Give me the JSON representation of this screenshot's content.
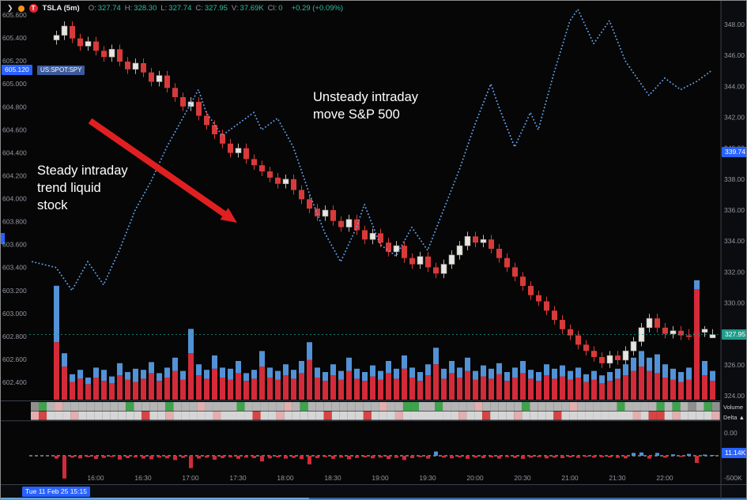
{
  "toolbar": {
    "symbol": "TSLA (5m)",
    "logo_letter": "T",
    "fields": [
      {
        "label": "O:",
        "value": "327.74"
      },
      {
        "label": "H:",
        "value": "328.30"
      },
      {
        "label": "L:",
        "value": "327.74"
      },
      {
        "label": "C:",
        "value": "327.95"
      },
      {
        "label": "V:",
        "value": "37.69K"
      },
      {
        "label": "Cl:",
        "value": "0"
      }
    ],
    "change": "+0.29 (+0.09%)"
  },
  "annotations": {
    "unsteady1": "Unsteady intraday",
    "unsteady2": "move S&P 500",
    "steady1": "Steady intraday",
    "steady2": "trend liquid",
    "steady3": "stock"
  },
  "badges": {
    "spy_left": "605.120",
    "spy_instrument": "US:SPOT:SPY",
    "right_blue": "339.74",
    "right_last": "327.95",
    "delta_value": "11.14K",
    "datetime": "Tue 11 Feb 25 15:15"
  },
  "pane_labels": {
    "volume": "Volume",
    "delta": "Delta ▲"
  },
  "colors": {
    "up": "#e8e6e3",
    "up_wick": "#b9b6b0",
    "down": "#d83a3a",
    "vol_sell": "#d32b39",
    "vol_buy": "#5292d6",
    "spy_line": "#5f9ee8",
    "accent_blue": "#2962ff",
    "accent_teal": "#1f9c8c",
    "arrow": "#e02020"
  },
  "chart_data": {
    "type": "candlestick",
    "symbol": "TSLA",
    "interval": "5m",
    "bar_minutes": 5,
    "legend_note": "white/red candles = TSLA (right axis); blue dotted line = US:SPOT:SPY (left axis); stacked red/blue = sell/buy volume; lower pane = Delta",
    "right_axis": {
      "range": [
        324,
        348
      ],
      "ticks": [
        "348.00",
        "346.00",
        "344.00",
        "342.00",
        "340.00",
        "338.00",
        "336.00",
        "334.00",
        "332.00",
        "330.00",
        "328.00",
        "326.00",
        "324.00"
      ]
    },
    "left_axis": {
      "range": [
        602.4,
        605.6
      ],
      "ticks": [
        "605.600",
        "605.400",
        "605.200",
        "605.000",
        "604.800",
        "604.600",
        "604.400",
        "604.200",
        "604.000",
        "603.800",
        "603.600",
        "603.400",
        "603.200",
        "603.000",
        "602.800",
        "602.600",
        "602.400"
      ]
    },
    "delta_axis": {
      "ticks": [
        "0.00",
        "-500K"
      ]
    },
    "time_ticks": [
      [
        5,
        "16:00"
      ],
      [
        11,
        "16:30"
      ],
      [
        17,
        "17:00"
      ],
      [
        23,
        "17:30"
      ],
      [
        29,
        "18:00"
      ],
      [
        35,
        "18:30"
      ],
      [
        41,
        "19:00"
      ],
      [
        47,
        "19:30"
      ],
      [
        53,
        "20:00"
      ],
      [
        59,
        "20:30"
      ],
      [
        65,
        "21:00"
      ],
      [
        71,
        "21:30"
      ],
      [
        77,
        "22:00"
      ]
    ],
    "candles": [
      [
        347.0,
        347.6,
        346.7,
        347.3
      ],
      [
        347.3,
        348.2,
        347.0,
        347.9
      ],
      [
        347.9,
        348.2,
        346.8,
        347.1
      ],
      [
        347.1,
        347.4,
        346.3,
        346.6
      ],
      [
        346.6,
        347.2,
        346.3,
        346.9
      ],
      [
        346.9,
        347.2,
        346.0,
        346.3
      ],
      [
        346.3,
        346.6,
        345.6,
        345.9
      ],
      [
        345.9,
        346.7,
        345.6,
        346.4
      ],
      [
        346.4,
        346.7,
        345.3,
        345.6
      ],
      [
        345.6,
        345.9,
        344.8,
        345.1
      ],
      [
        345.1,
        345.8,
        344.8,
        345.5
      ],
      [
        345.5,
        345.8,
        344.6,
        344.9
      ],
      [
        344.9,
        345.2,
        344.0,
        344.3
      ],
      [
        344.3,
        345.0,
        344.0,
        344.7
      ],
      [
        344.7,
        345.0,
        343.6,
        343.9
      ],
      [
        343.9,
        344.2,
        343.0,
        343.3
      ],
      [
        343.3,
        343.6,
        342.4,
        342.7
      ],
      [
        342.7,
        343.3,
        342.4,
        343.0
      ],
      [
        343.0,
        343.3,
        341.8,
        342.1
      ],
      [
        342.1,
        342.4,
        341.2,
        341.5
      ],
      [
        341.5,
        341.8,
        340.6,
        340.9
      ],
      [
        340.9,
        341.2,
        340.0,
        340.3
      ],
      [
        340.3,
        340.6,
        339.4,
        339.7
      ],
      [
        339.7,
        340.3,
        339.4,
        340.0
      ],
      [
        340.0,
        340.3,
        339.0,
        339.3
      ],
      [
        339.3,
        339.6,
        338.6,
        338.9
      ],
      [
        338.9,
        339.2,
        338.2,
        338.5
      ],
      [
        338.5,
        338.8,
        337.8,
        338.1
      ],
      [
        338.1,
        338.4,
        337.4,
        337.7
      ],
      [
        337.7,
        338.3,
        337.4,
        338.0
      ],
      [
        338.0,
        338.3,
        337.0,
        337.3
      ],
      [
        337.3,
        337.6,
        336.4,
        336.7
      ],
      [
        336.7,
        337.0,
        335.8,
        336.1
      ],
      [
        336.1,
        336.4,
        335.3,
        335.6
      ],
      [
        335.6,
        336.3,
        335.3,
        336.0
      ],
      [
        336.0,
        336.3,
        335.0,
        335.3
      ],
      [
        335.3,
        335.6,
        334.6,
        334.9
      ],
      [
        334.9,
        335.7,
        334.6,
        335.4
      ],
      [
        335.4,
        335.7,
        334.4,
        334.7
      ],
      [
        334.7,
        335.0,
        333.8,
        334.1
      ],
      [
        334.1,
        334.8,
        333.8,
        334.5
      ],
      [
        334.5,
        334.8,
        333.6,
        333.9
      ],
      [
        333.9,
        334.2,
        333.0,
        333.3
      ],
      [
        333.3,
        334.0,
        333.0,
        333.7
      ],
      [
        333.7,
        334.0,
        332.6,
        332.9
      ],
      [
        332.9,
        333.2,
        332.2,
        332.5
      ],
      [
        332.5,
        333.3,
        332.2,
        333.0
      ],
      [
        333.0,
        333.3,
        332.0,
        332.3
      ],
      [
        332.3,
        332.6,
        331.6,
        331.9
      ],
      [
        331.9,
        332.8,
        331.6,
        332.5
      ],
      [
        332.5,
        333.4,
        332.2,
        333.1
      ],
      [
        333.1,
        334.0,
        332.8,
        333.7
      ],
      [
        333.7,
        334.6,
        333.4,
        334.3
      ],
      [
        334.3,
        334.6,
        333.6,
        333.9
      ],
      [
        333.9,
        334.4,
        333.6,
        334.1
      ],
      [
        334.1,
        334.4,
        333.2,
        333.5
      ],
      [
        333.5,
        333.8,
        332.6,
        332.9
      ],
      [
        332.9,
        333.2,
        332.0,
        332.3
      ],
      [
        332.3,
        332.6,
        331.4,
        331.7
      ],
      [
        331.7,
        332.0,
        330.8,
        331.1
      ],
      [
        331.1,
        331.4,
        330.2,
        330.5
      ],
      [
        330.5,
        330.8,
        329.8,
        330.1
      ],
      [
        330.1,
        330.4,
        329.2,
        329.5
      ],
      [
        329.5,
        329.8,
        328.6,
        328.9
      ],
      [
        328.9,
        329.2,
        328.0,
        328.3
      ],
      [
        328.3,
        328.6,
        327.6,
        327.9
      ],
      [
        327.9,
        328.2,
        327.0,
        327.3
      ],
      [
        327.3,
        327.6,
        326.6,
        326.9
      ],
      [
        326.9,
        327.2,
        326.2,
        326.5
      ],
      [
        326.5,
        326.8,
        325.8,
        326.1
      ],
      [
        326.1,
        326.9,
        325.8,
        326.6
      ],
      [
        326.6,
        326.9,
        326.0,
        326.3
      ],
      [
        326.3,
        327.2,
        326.0,
        326.9
      ],
      [
        326.9,
        327.8,
        326.6,
        327.5
      ],
      [
        327.5,
        328.7,
        327.2,
        328.4
      ],
      [
        328.4,
        329.3,
        328.1,
        329.0
      ],
      [
        329.0,
        329.3,
        328.1,
        328.4
      ],
      [
        328.4,
        328.7,
        327.7,
        328.0
      ],
      [
        328.0,
        328.5,
        327.7,
        328.2
      ],
      [
        328.2,
        328.5,
        327.6,
        327.9
      ],
      [
        327.9,
        328.3,
        327.6,
        327.8
      ],
      [
        327.8,
        328.4,
        327.5,
        328.1
      ],
      [
        328.1,
        328.5,
        327.8,
        328.3
      ],
      [
        327.74,
        328.3,
        327.74,
        327.95
      ]
    ],
    "overlay_line": {
      "name": "US:SPOT:SPY",
      "axis": "left",
      "style": "dotted",
      "last_value": 605.12,
      "points": [
        [
          -3,
          603.45
        ],
        [
          0,
          603.4
        ],
        [
          2,
          603.2
        ],
        [
          4,
          603.45
        ],
        [
          6,
          603.25
        ],
        [
          8,
          603.55
        ],
        [
          10,
          603.9
        ],
        [
          12,
          604.15
        ],
        [
          14,
          604.45
        ],
        [
          16,
          604.7
        ],
        [
          18,
          604.95
        ],
        [
          19,
          604.75
        ],
        [
          21,
          604.55
        ],
        [
          23,
          604.65
        ],
        [
          25,
          604.75
        ],
        [
          26,
          604.6
        ],
        [
          28,
          604.7
        ],
        [
          30,
          604.45
        ],
        [
          32,
          604.05
        ],
        [
          34,
          603.7
        ],
        [
          36,
          603.45
        ],
        [
          38,
          603.75
        ],
        [
          39,
          603.95
        ],
        [
          41,
          603.6
        ],
        [
          43,
          603.5
        ],
        [
          45,
          603.75
        ],
        [
          47,
          603.55
        ],
        [
          49,
          603.9
        ],
        [
          51,
          604.25
        ],
        [
          53,
          604.65
        ],
        [
          55,
          605.0
        ],
        [
          56,
          604.8
        ],
        [
          58,
          604.45
        ],
        [
          60,
          604.75
        ],
        [
          61,
          604.6
        ],
        [
          63,
          605.1
        ],
        [
          65,
          605.55
        ],
        [
          66,
          605.65
        ],
        [
          68,
          605.35
        ],
        [
          70,
          605.55
        ],
        [
          72,
          605.2
        ],
        [
          74,
          605.0
        ],
        [
          75,
          604.9
        ],
        [
          77,
          605.05
        ],
        [
          79,
          604.95
        ],
        [
          81,
          605.02
        ],
        [
          83,
          605.12
        ]
      ]
    },
    "volume_stacked": {
      "series": [
        "sell",
        "buy"
      ],
      "units": "K",
      "values": [
        [
          260,
          255
        ],
        [
          150,
          60
        ],
        [
          80,
          35
        ],
        [
          95,
          40
        ],
        [
          70,
          30
        ],
        [
          100,
          45
        ],
        [
          85,
          50
        ],
        [
          75,
          30
        ],
        [
          110,
          55
        ],
        [
          90,
          35
        ],
        [
          80,
          60
        ],
        [
          95,
          40
        ],
        [
          120,
          50
        ],
        [
          85,
          35
        ],
        [
          100,
          45
        ],
        [
          130,
          60
        ],
        [
          90,
          40
        ],
        [
          210,
          110
        ],
        [
          110,
          50
        ],
        [
          95,
          40
        ],
        [
          140,
          60
        ],
        [
          100,
          45
        ],
        [
          90,
          50
        ],
        [
          120,
          55
        ],
        [
          85,
          35
        ],
        [
          95,
          40
        ],
        [
          150,
          70
        ],
        [
          100,
          45
        ],
        [
          90,
          40
        ],
        [
          110,
          50
        ],
        [
          95,
          40
        ],
        [
          120,
          55
        ],
        [
          180,
          80
        ],
        [
          100,
          45
        ],
        [
          85,
          40
        ],
        [
          110,
          50
        ],
        [
          90,
          40
        ],
        [
          130,
          60
        ],
        [
          95,
          45
        ],
        [
          85,
          40
        ],
        [
          105,
          50
        ],
        [
          90,
          40
        ],
        [
          120,
          55
        ],
        [
          95,
          45
        ],
        [
          140,
          60
        ],
        [
          100,
          45
        ],
        [
          85,
          40
        ],
        [
          110,
          50
        ],
        [
          160,
          75
        ],
        [
          95,
          45
        ],
        [
          120,
          55
        ],
        [
          100,
          45
        ],
        [
          130,
          60
        ],
        [
          90,
          40
        ],
        [
          105,
          50
        ],
        [
          95,
          45
        ],
        [
          115,
          50
        ],
        [
          85,
          40
        ],
        [
          100,
          45
        ],
        [
          120,
          55
        ],
        [
          95,
          40
        ],
        [
          85,
          40
        ],
        [
          110,
          50
        ],
        [
          95,
          45
        ],
        [
          105,
          50
        ],
        [
          90,
          40
        ],
        [
          100,
          45
        ],
        [
          80,
          35
        ],
        [
          90,
          40
        ],
        [
          75,
          35
        ],
        [
          85,
          40
        ],
        [
          95,
          45
        ],
        [
          110,
          50
        ],
        [
          130,
          60
        ],
        [
          150,
          70
        ],
        [
          130,
          60
        ],
        [
          120,
          85
        ],
        [
          100,
          60
        ],
        [
          90,
          50
        ],
        [
          80,
          45
        ],
        [
          90,
          55
        ],
        [
          500,
          40
        ],
        [
          110,
          65
        ],
        [
          85,
          45
        ]
      ]
    },
    "delta": {
      "units": "K",
      "last_label": "11.14K",
      "values": [
        -60,
        -480,
        -40,
        -55,
        -30,
        -70,
        -45,
        -25,
        -80,
        -50,
        -35,
        -60,
        -75,
        -40,
        -55,
        -90,
        -45,
        -260,
        -60,
        -40,
        -85,
        -50,
        -35,
        -65,
        -40,
        -50,
        -120,
        -55,
        -35,
        -60,
        -45,
        -70,
        -180,
        -50,
        -30,
        -65,
        -40,
        -75,
        -45,
        -35,
        -55,
        -40,
        -70,
        -45,
        -90,
        -50,
        -30,
        -60,
        90,
        -40,
        -55,
        -35,
        -65,
        -40,
        -50,
        -35,
        -60,
        -30,
        -45,
        -65,
        -40,
        -30,
        -55,
        -40,
        -50,
        -35,
        -45,
        -25,
        -40,
        -30,
        -35,
        -45,
        -55,
        60,
        70,
        -60,
        60,
        -40,
        30,
        -25,
        40,
        -150,
        25,
        11
      ]
    },
    "heatmap": {
      "palette": {
        "g": "#b5b5b5",
        "d": "#8f8f8f",
        "G": "#3fa34d",
        "p": "#e2aeae",
        "r": "#d64545",
        "w": "#d6d6d6"
      },
      "rows": [
        "dGgpggggggggGggggGgggpggggGgggggpgGgggggggggpggGGggGggggpgggggGgggggpgggggGggggGgGgdgGd",
        "prwwwpwwwwwwwwrwwpwwwwwpwwwwrwwpwwwwwrwwwwrwwwpwwwwwwwpwwrwwwpwwwwrwwwwwwwwwpwrrwpwwwwp"
      ]
    }
  }
}
